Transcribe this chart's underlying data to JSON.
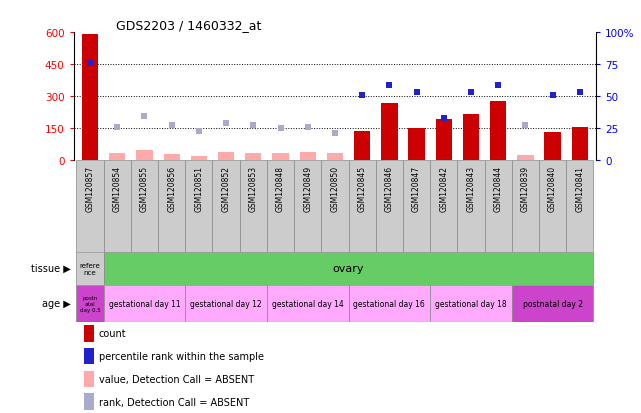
{
  "title": "GDS2203 / 1460332_at",
  "samples": [
    "GSM120857",
    "GSM120854",
    "GSM120855",
    "GSM120856",
    "GSM120851",
    "GSM120852",
    "GSM120853",
    "GSM120848",
    "GSM120849",
    "GSM120850",
    "GSM120845",
    "GSM120846",
    "GSM120847",
    "GSM120842",
    "GSM120843",
    "GSM120844",
    "GSM120839",
    "GSM120840",
    "GSM120841"
  ],
  "count_values": [
    590,
    0,
    0,
    0,
    0,
    0,
    0,
    0,
    0,
    0,
    140,
    270,
    150,
    195,
    215,
    280,
    0,
    135,
    155
  ],
  "count_absent": [
    0,
    35,
    50,
    30,
    20,
    40,
    35,
    35,
    40,
    35,
    0,
    0,
    0,
    0,
    0,
    0,
    25,
    0,
    0
  ],
  "rank_values": [
    455,
    155,
    210,
    165,
    140,
    175,
    165,
    150,
    155,
    130,
    305,
    355,
    320,
    200,
    320,
    355,
    165,
    305,
    320
  ],
  "rank_present": [
    true,
    false,
    false,
    false,
    false,
    false,
    false,
    false,
    false,
    false,
    true,
    true,
    true,
    true,
    true,
    true,
    false,
    true,
    true
  ],
  "ylim_left": [
    0,
    600
  ],
  "ylim_right": [
    0,
    100
  ],
  "yticks_left": [
    0,
    150,
    300,
    450,
    600
  ],
  "yticks_right": [
    0,
    25,
    50,
    75,
    100
  ],
  "ytick_right_labels": [
    "0",
    "25",
    "50",
    "75",
    "100%"
  ],
  "color_count_present": "#cc0000",
  "color_count_absent": "#ffaaaa",
  "color_rank_present": "#2222cc",
  "color_rank_absent": "#aaaacc",
  "tissue_row": {
    "first_label": "refere\nnce",
    "first_color": "#cccccc",
    "second_label": "ovary",
    "second_color": "#66cc66",
    "first_span": 1,
    "second_span": 18
  },
  "age_row": {
    "first_label": "postn\natal\nday 0.5",
    "first_color": "#cc44cc",
    "ages": [
      {
        "label": "gestational day 11",
        "span": 3,
        "color": "#ffaaff"
      },
      {
        "label": "gestational day 12",
        "span": 3,
        "color": "#ffaaff"
      },
      {
        "label": "gestational day 14",
        "span": 3,
        "color": "#ffaaff"
      },
      {
        "label": "gestational day 16",
        "span": 3,
        "color": "#ffaaff"
      },
      {
        "label": "gestational day 18",
        "span": 3,
        "color": "#ffaaff"
      },
      {
        "label": "postnatal day 2",
        "span": 3,
        "color": "#cc44cc"
      }
    ]
  },
  "legend_items": [
    {
      "color": "#cc0000",
      "label": "count"
    },
    {
      "color": "#2222cc",
      "label": "percentile rank within the sample"
    },
    {
      "color": "#ffaaaa",
      "label": "value, Detection Call = ABSENT"
    },
    {
      "color": "#aaaacc",
      "label": "rank, Detection Call = ABSENT"
    }
  ],
  "background_color": "#ffffff",
  "plot_bg": "#ffffff",
  "dotted_lines": [
    150,
    300,
    450
  ],
  "xlabel_bg": "#cccccc",
  "xlabel_border": "#888888"
}
